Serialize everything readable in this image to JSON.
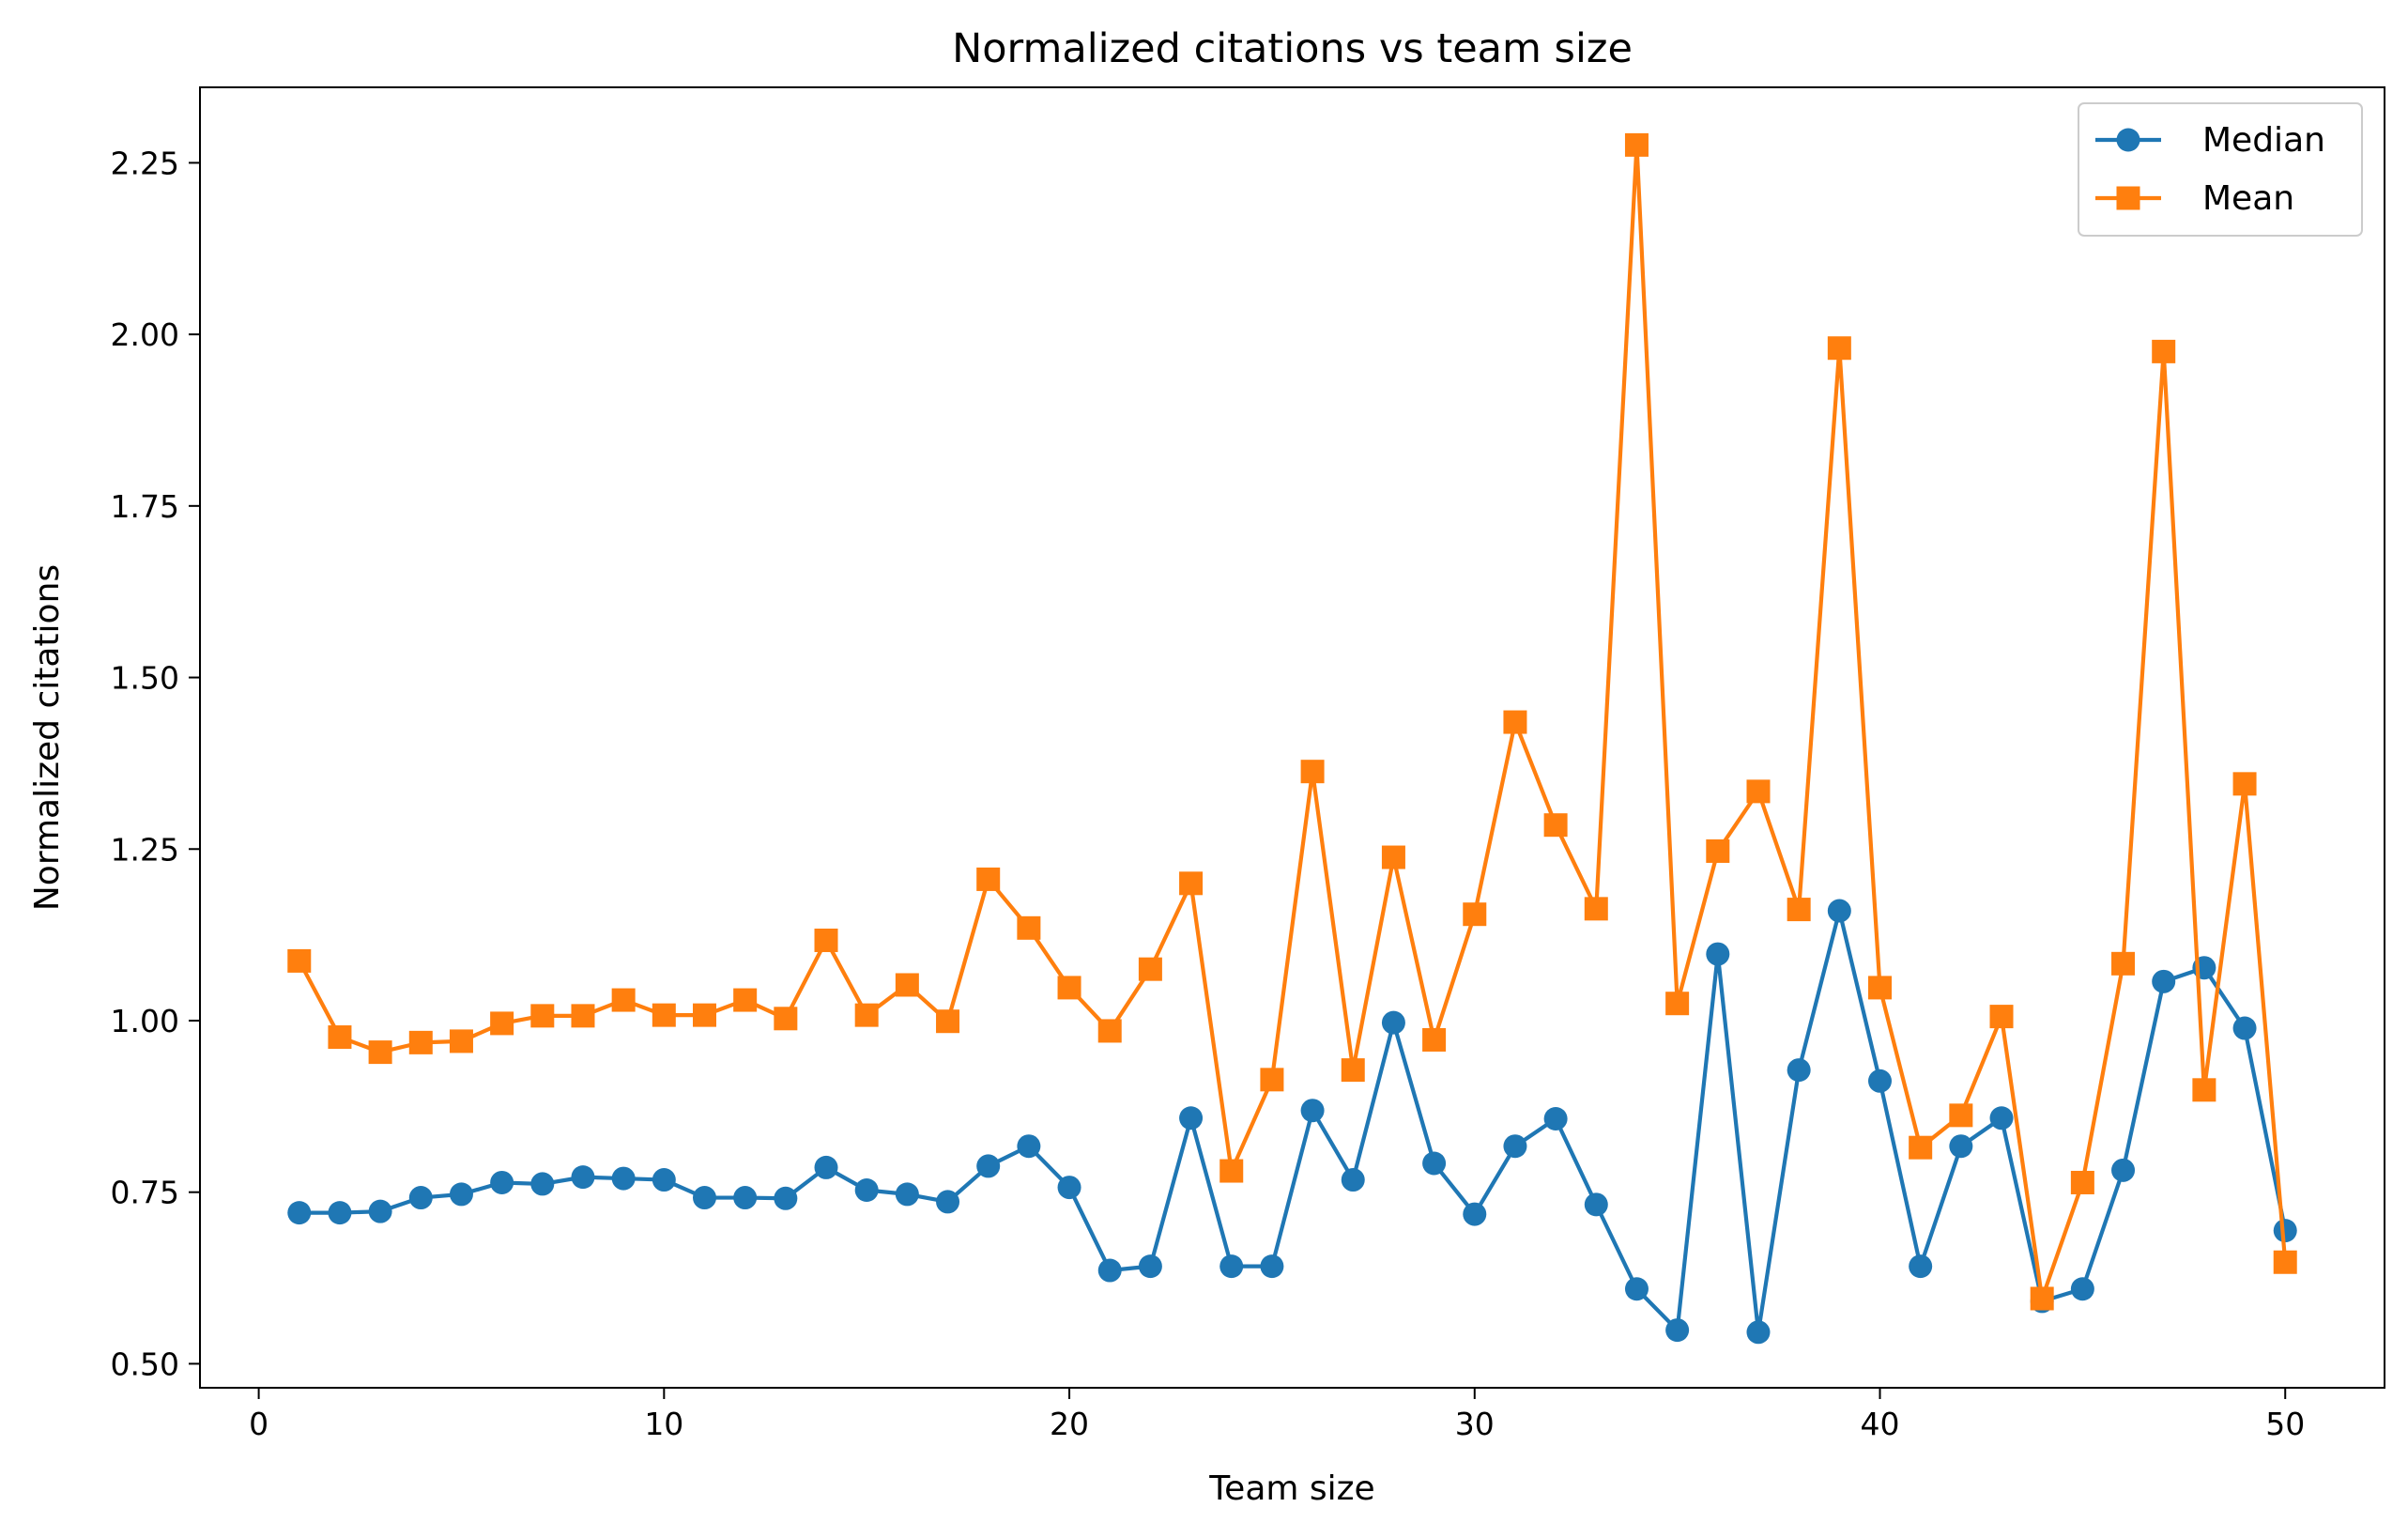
{
  "chart_data": {
    "type": "line",
    "title": "Normalized citations vs team size",
    "xlabel": "Team size",
    "ylabel": "Normalized citations",
    "xlim": [
      -1.45,
      52.45
    ],
    "ylim": [
      0.465,
      2.36
    ],
    "xticks": [
      0,
      10,
      20,
      30,
      40,
      50
    ],
    "yticks": [
      0.5,
      0.75,
      1.0,
      1.25,
      1.5,
      1.75,
      2.0,
      2.25
    ],
    "xtick_labels": [
      "0",
      "10",
      "20",
      "30",
      "40",
      "50"
    ],
    "ytick_labels": [
      "0.50",
      "0.75",
      "1.00",
      "1.25",
      "1.50",
      "1.75",
      "2.00",
      "2.25"
    ],
    "grid": false,
    "legend_position": "top-right",
    "x": [
      1,
      2,
      3,
      4,
      5,
      6,
      7,
      8,
      9,
      10,
      11,
      12,
      13,
      14,
      15,
      16,
      17,
      18,
      19,
      20,
      21,
      22,
      23,
      24,
      25,
      26,
      27,
      28,
      29,
      30,
      31,
      32,
      33,
      34,
      35,
      36,
      37,
      38,
      39,
      40,
      41,
      42,
      43,
      44,
      45,
      46,
      47,
      48,
      49,
      50
    ],
    "series": [
      {
        "name": "Median",
        "color": "#1f77b4",
        "marker": "circle",
        "values": [
          0.72,
          0.72,
          0.722,
          0.742,
          0.747,
          0.764,
          0.762,
          0.772,
          0.77,
          0.768,
          0.742,
          0.742,
          0.741,
          0.786,
          0.753,
          0.747,
          0.736,
          0.788,
          0.817,
          0.757,
          0.636,
          0.642,
          0.858,
          0.642,
          0.642,
          0.869,
          0.768,
          0.997,
          0.792,
          0.718,
          0.817,
          0.857,
          0.732,
          0.609,
          0.549,
          1.097,
          0.546,
          0.928,
          1.16,
          0.912,
          0.642,
          0.817,
          0.858,
          0.591,
          0.609,
          0.782,
          1.057,
          1.077,
          0.989,
          0.694
        ]
      },
      {
        "name": "Mean",
        "color": "#ff7f0e",
        "marker": "square",
        "values": [
          1.087,
          0.976,
          0.954,
          0.968,
          0.97,
          0.996,
          1.007,
          1.007,
          1.03,
          1.008,
          1.008,
          1.03,
          1.003,
          1.117,
          1.008,
          1.052,
          0.999,
          1.206,
          1.135,
          1.048,
          0.985,
          1.075,
          1.2,
          0.781,
          0.914,
          1.363,
          0.928,
          1.238,
          0.972,
          1.155,
          1.435,
          1.285,
          1.163,
          2.276,
          1.025,
          1.247,
          1.334,
          1.162,
          1.98,
          1.048,
          0.815,
          0.862,
          1.006,
          0.595,
          0.764,
          1.083,
          1.975,
          0.899,
          1.345,
          0.648
        ]
      }
    ]
  }
}
